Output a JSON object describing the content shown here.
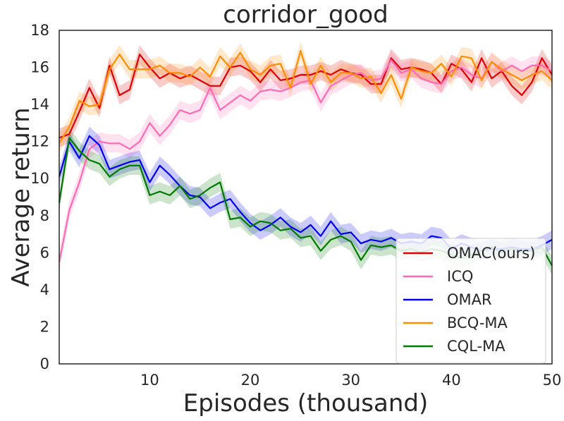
{
  "chart_data": {
    "type": "line",
    "title": "corridor_good",
    "xlabel": "Episodes (thousand)",
    "ylabel": "Average return",
    "xlim": [
      1,
      50
    ],
    "ylim": [
      0,
      18
    ],
    "xticks": [
      10,
      20,
      30,
      40,
      50
    ],
    "yticks": [
      0,
      2,
      4,
      6,
      8,
      10,
      12,
      14,
      16,
      18
    ],
    "grid": false,
    "legend_position": "lower-right",
    "x": [
      1,
      2,
      3,
      4,
      5,
      6,
      7,
      8,
      9,
      10,
      11,
      12,
      13,
      14,
      15,
      16,
      17,
      18,
      19,
      20,
      21,
      22,
      23,
      24,
      25,
      26,
      27,
      28,
      29,
      30,
      31,
      32,
      33,
      34,
      35,
      36,
      37,
      38,
      39,
      40,
      41,
      42,
      43,
      44,
      45,
      46,
      47,
      48,
      49,
      50
    ],
    "series": [
      {
        "name": "OMAC(ours)",
        "color": "#e00000",
        "band": 0.5,
        "values": [
          12.2,
          12.4,
          13.6,
          14.9,
          13.8,
          16.1,
          14.5,
          14.8,
          16.7,
          16.0,
          15.4,
          15.7,
          15.4,
          15.6,
          15.3,
          15.0,
          15.0,
          16.0,
          16.1,
          15.8,
          15.2,
          15.9,
          15.3,
          15.4,
          15.6,
          15.6,
          15.8,
          15.6,
          15.9,
          15.7,
          15.6,
          15.1,
          15.1,
          16.5,
          15.9,
          16.0,
          15.9,
          15.7,
          15.1,
          16.2,
          15.9,
          15.2,
          16.5,
          15.4,
          15.8,
          15.0,
          14.5,
          15.2,
          16.5,
          15.6
        ]
      },
      {
        "name": "ICQ",
        "color": "#ff69b4",
        "band": 0.5,
        "values": [
          5.5,
          8.3,
          9.8,
          11.6,
          12.0,
          11.9,
          11.9,
          11.6,
          12.0,
          13.0,
          12.3,
          12.9,
          13.7,
          13.5,
          13.7,
          14.9,
          13.7,
          14.1,
          14.5,
          14.2,
          14.7,
          14.8,
          14.7,
          14.9,
          15.2,
          15.3,
          14.1,
          15.0,
          15.3,
          15.6,
          15.7,
          15.3,
          15.4,
          16.4,
          15.7,
          15.9,
          15.4,
          15.2,
          15.1,
          15.8,
          16.0,
          15.6,
          15.4,
          16.3,
          15.8,
          16.1,
          15.8,
          16.1,
          16.1,
          15.8
        ]
      },
      {
        "name": "OMAR",
        "color": "#0000ee",
        "band": 0.5,
        "values": [
          10.1,
          12.0,
          11.1,
          12.3,
          11.8,
          10.5,
          10.7,
          10.9,
          11.0,
          9.8,
          10.7,
          10.2,
          9.6,
          9.1,
          9.0,
          8.4,
          8.7,
          8.9,
          8.2,
          7.6,
          7.2,
          7.5,
          7.9,
          7.4,
          7.1,
          7.5,
          6.9,
          7.7,
          7.0,
          7.1,
          6.5,
          6.7,
          6.6,
          6.8,
          6.5,
          6.6,
          6.5,
          6.9,
          6.8,
          6.2,
          6.5,
          6.3,
          6.1,
          6.2,
          6.2,
          6.3,
          6.2,
          6.2,
          6.4,
          6.7
        ]
      },
      {
        "name": "BCQ-MA",
        "color": "#ff8c00",
        "band": 0.5,
        "values": [
          11.9,
          12.8,
          14.2,
          13.9,
          14.0,
          15.9,
          16.7,
          15.9,
          15.9,
          15.9,
          16.1,
          15.7,
          15.7,
          15.5,
          16.0,
          15.5,
          16.6,
          16.0,
          16.8,
          15.9,
          15.6,
          16.1,
          16.2,
          14.9,
          16.9,
          15.1,
          16.1,
          15.2,
          15.7,
          15.7,
          15.4,
          15.5,
          14.6,
          15.6,
          14.3,
          16.0,
          15.8,
          15.7,
          16.2,
          15.5,
          16.6,
          16.5,
          15.3,
          16.3,
          15.9,
          15.6,
          15.3,
          15.6,
          15.8,
          15.3
        ]
      },
      {
        "name": "CQL-MA",
        "color": "#007a00",
        "band": 0.5,
        "values": [
          8.7,
          12.2,
          11.5,
          11.0,
          10.8,
          10.1,
          10.5,
          10.7,
          10.7,
          9.1,
          9.3,
          9.1,
          9.6,
          8.9,
          9.1,
          9.5,
          9.8,
          7.8,
          7.9,
          7.4,
          7.7,
          7.6,
          7.2,
          7.3,
          6.8,
          6.9,
          6.1,
          6.7,
          6.9,
          6.6,
          5.6,
          6.4,
          6.3,
          6.4,
          6.1,
          6.2,
          6.0,
          6.2,
          6.1,
          5.9,
          5.7,
          5.9,
          6.1,
          6.3,
          6.0,
          6.2,
          6.1,
          6.1,
          6.3,
          5.3
        ]
      }
    ]
  }
}
